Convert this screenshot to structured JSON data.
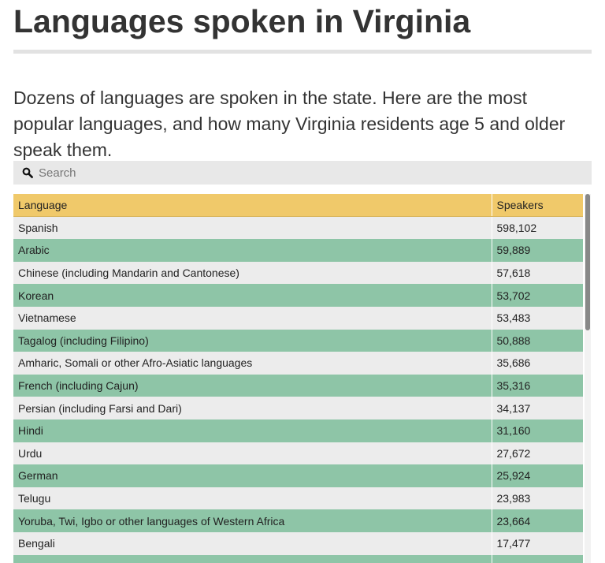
{
  "page": {
    "title": "Languages spoken in Virginia",
    "intro": "Dozens of languages are spoken in the state. Here are the most popular languages, and how many Virginia residents age 5 and older speak them."
  },
  "search": {
    "icon": "search-icon",
    "placeholder": "Search",
    "value": ""
  },
  "table": {
    "headers": [
      "Language",
      "Speakers"
    ],
    "header_color": "#f0c96a",
    "row_colors": [
      "#ececec",
      "#8ec5a7"
    ],
    "rows": [
      {
        "language": "Spanish",
        "speakers": "598,102"
      },
      {
        "language": "Arabic",
        "speakers": "59,889"
      },
      {
        "language": "Chinese (including Mandarin and Cantonese)",
        "speakers": "57,618"
      },
      {
        "language": "Korean",
        "speakers": "53,702"
      },
      {
        "language": "Vietnamese",
        "speakers": "53,483"
      },
      {
        "language": "Tagalog (including Filipino)",
        "speakers": "50,888"
      },
      {
        "language": "Amharic, Somali or other Afro-Asiatic languages",
        "speakers": "35,686"
      },
      {
        "language": "French (including Cajun)",
        "speakers": "35,316"
      },
      {
        "language": "Persian (including Farsi and Dari)",
        "speakers": "34,137"
      },
      {
        "language": "Hindi",
        "speakers": "31,160"
      },
      {
        "language": "Urdu",
        "speakers": "27,672"
      },
      {
        "language": "German",
        "speakers": "25,924"
      },
      {
        "language": "Telugu",
        "speakers": "23,983"
      },
      {
        "language": "Yoruba, Twi, Igbo or other languages of Western Africa",
        "speakers": "23,664"
      },
      {
        "language": "Bengali",
        "speakers": "17,477"
      },
      {
        "language": "",
        "speakers": ""
      }
    ]
  }
}
